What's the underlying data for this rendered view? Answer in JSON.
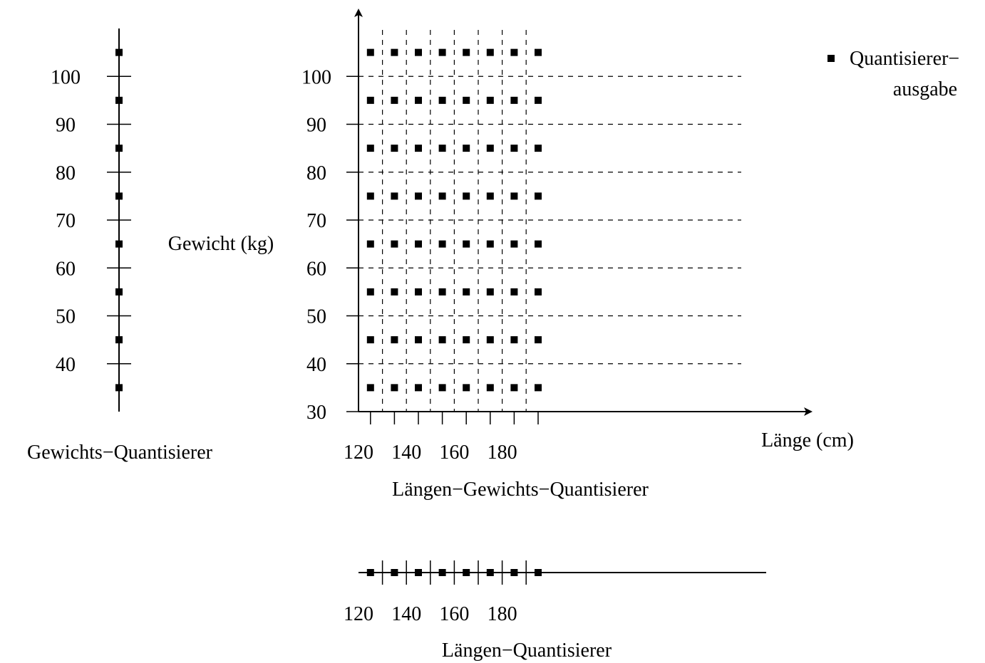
{
  "weight_quantizer": {
    "title": "Gewichts−Quantisierer",
    "ticks": [
      "40",
      "50",
      "60",
      "70",
      "80",
      "90",
      "100"
    ],
    "outputs": [
      35,
      45,
      55,
      65,
      75,
      85,
      95,
      105
    ]
  },
  "joint_quantizer": {
    "title": "Längen−Gewichts−Quantisierer",
    "y_label": "Gewicht (kg)",
    "x_label": "Länge (cm)",
    "y_ticks": [
      "30",
      "40",
      "50",
      "60",
      "70",
      "80",
      "90",
      "100"
    ],
    "x_ticks": [
      "120",
      "140",
      "160",
      "180"
    ],
    "x_outputs": [
      125,
      135,
      145,
      155,
      165,
      175,
      185,
      195
    ],
    "y_outputs": [
      35,
      45,
      55,
      65,
      75,
      85,
      95,
      105
    ],
    "x_boundaries": [
      130,
      140,
      150,
      160,
      170,
      180,
      190
    ],
    "y_boundaries": [
      40,
      50,
      60,
      70,
      80,
      90,
      100
    ]
  },
  "length_quantizer": {
    "title": "Längen−Quantisierer",
    "ticks": [
      "120",
      "140",
      "160",
      "180"
    ],
    "outputs": [
      125,
      135,
      145,
      155,
      165,
      175,
      185,
      195
    ],
    "boundaries": [
      130,
      140,
      150,
      160,
      170,
      180,
      190
    ]
  },
  "legend": {
    "line1": "Quantisierer−",
    "line2": "ausgabe"
  }
}
